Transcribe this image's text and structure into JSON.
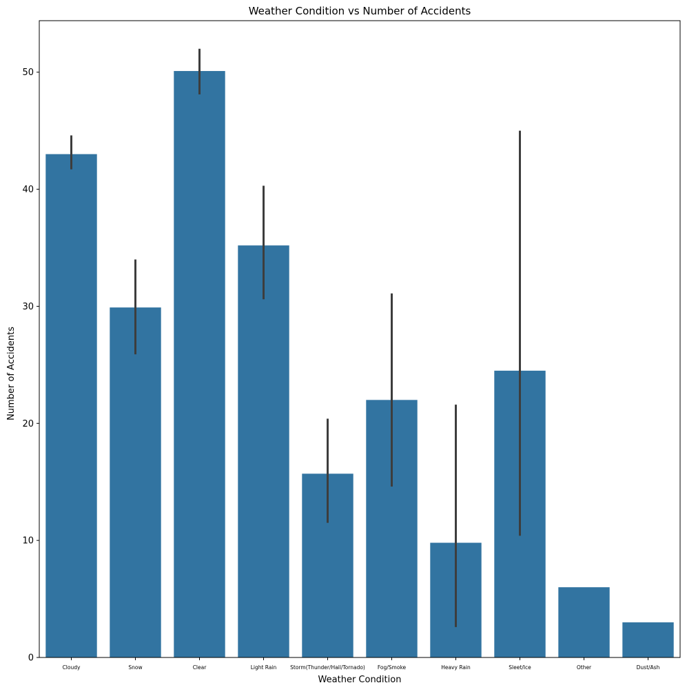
{
  "chart_data": {
    "type": "bar",
    "title": "Weather Condition vs Number of Accidents",
    "xlabel": "Weather Condition",
    "ylabel": "Number of Accidents",
    "ylim": [
      0,
      54.4
    ],
    "yticks": [
      0,
      10,
      20,
      30,
      40,
      50
    ],
    "grid": false,
    "bar_color": "#3274a1",
    "errorbar_color": "#3d3d3d",
    "categories": [
      "Cloudy",
      "Snow",
      "Clear",
      "Light Rain",
      "Storm(Thunder/Hail/Tornado)",
      "Fog/Smoke",
      "Heavy Rain",
      "Sleet/Ice",
      "Other",
      "Dust/Ash"
    ],
    "values": [
      43.0,
      29.9,
      50.1,
      35.2,
      15.7,
      22.0,
      9.8,
      24.5,
      6.0,
      3.0
    ],
    "error_low": [
      41.7,
      25.9,
      48.1,
      30.6,
      11.5,
      14.6,
      2.6,
      10.4,
      null,
      null
    ],
    "error_high": [
      44.6,
      34.0,
      52.0,
      40.3,
      20.4,
      31.1,
      21.6,
      45.0,
      null,
      null
    ]
  }
}
